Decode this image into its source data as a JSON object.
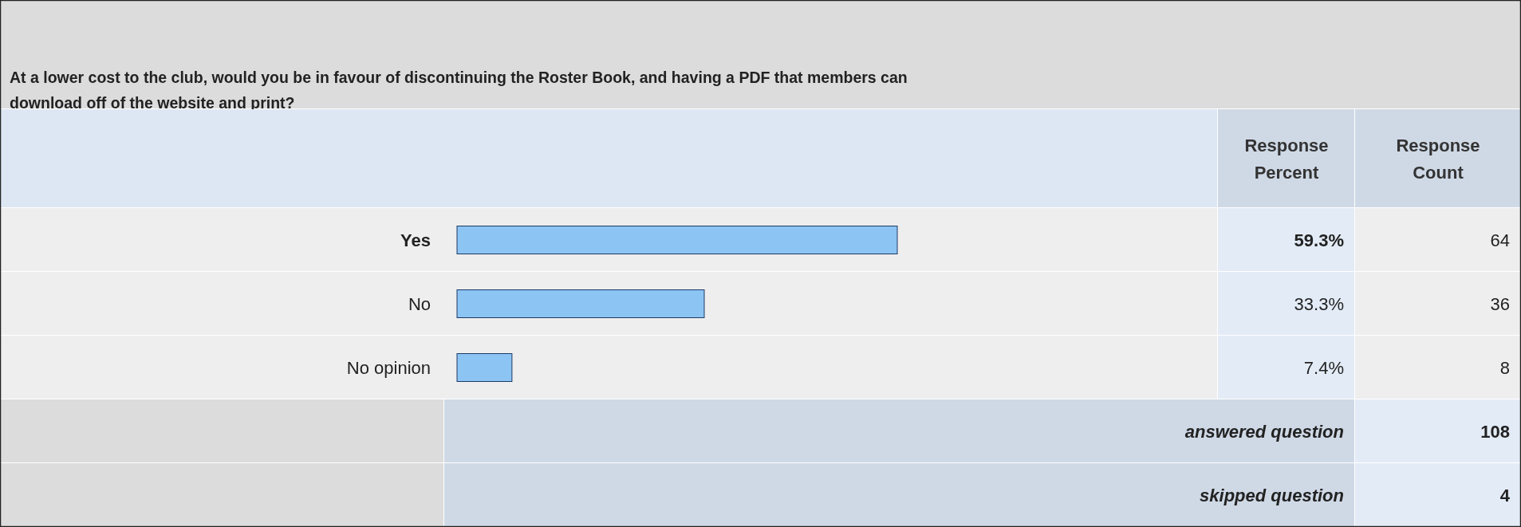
{
  "chart_data": {
    "type": "bar",
    "orientation": "horizontal",
    "title": "At a lower cost to the club, would you be in favour of discontinuing the Roster Book, and having a PDF that members can download off of the website and print?",
    "categories": [
      "Yes",
      "No",
      "No opinion"
    ],
    "values": [
      59.3,
      33.3,
      7.4
    ],
    "value_labels": [
      "59.3%",
      "33.3%",
      "7.4%"
    ],
    "color": "#8cc4f4",
    "annotations": [
      "Response Percent",
      "Response Count",
      "64",
      "36",
      "8",
      "answered question",
      "108",
      "skipped question",
      "4"
    ]
  }
}
